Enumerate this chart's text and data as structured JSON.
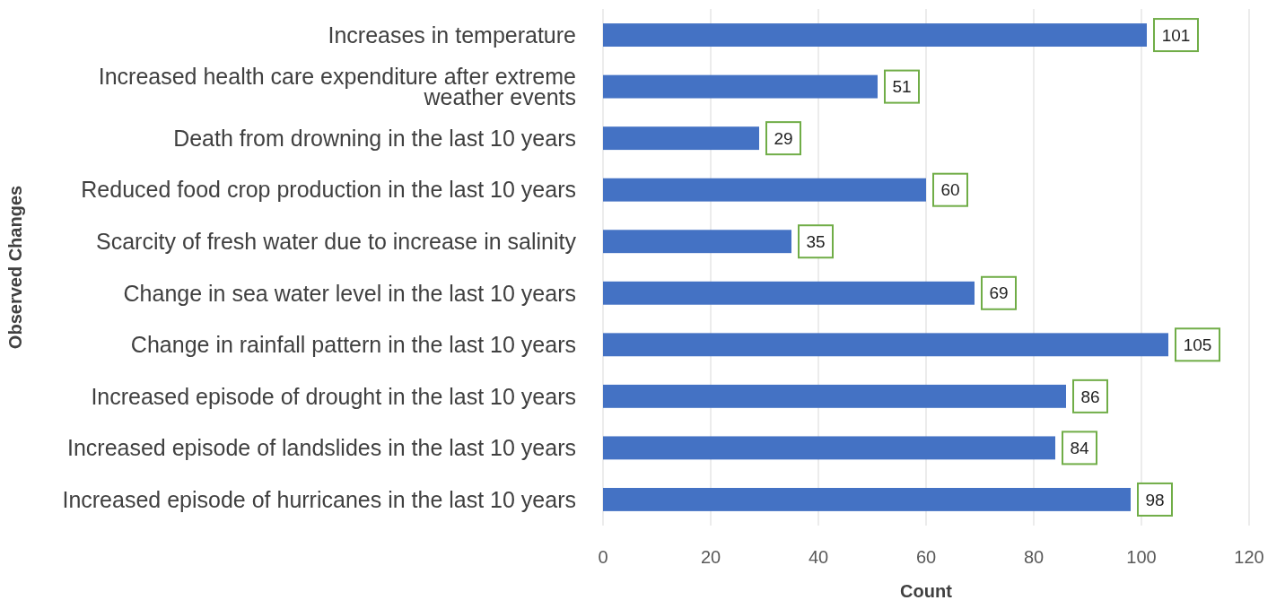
{
  "chart_data": {
    "type": "bar",
    "orientation": "horizontal",
    "xlabel": "Count",
    "ylabel": "Observed Changes",
    "categories": [
      "Increases in temperature",
      "Increased health care expenditure after extreme weather events",
      "Death from drowning in the last 10 years",
      "Reduced food crop production in the last 10 years",
      "Scarcity of fresh water due to increase in salinity",
      "Change in sea water level in the last 10 years",
      "Change in rainfall pattern in the last 10 years",
      "Increased episode of drought in the last 10 years",
      "Increased episode of landslides in the last 10 years",
      "Increased episode of hurricanes in the last 10 years"
    ],
    "values": [
      101,
      51,
      29,
      60,
      35,
      69,
      105,
      86,
      84,
      98
    ],
    "color": "#4472c4",
    "data_labels": true,
    "grid": "x",
    "xlim": [
      0,
      120
    ],
    "xticks": [
      0,
      20,
      40,
      60,
      80,
      100,
      120
    ]
  }
}
